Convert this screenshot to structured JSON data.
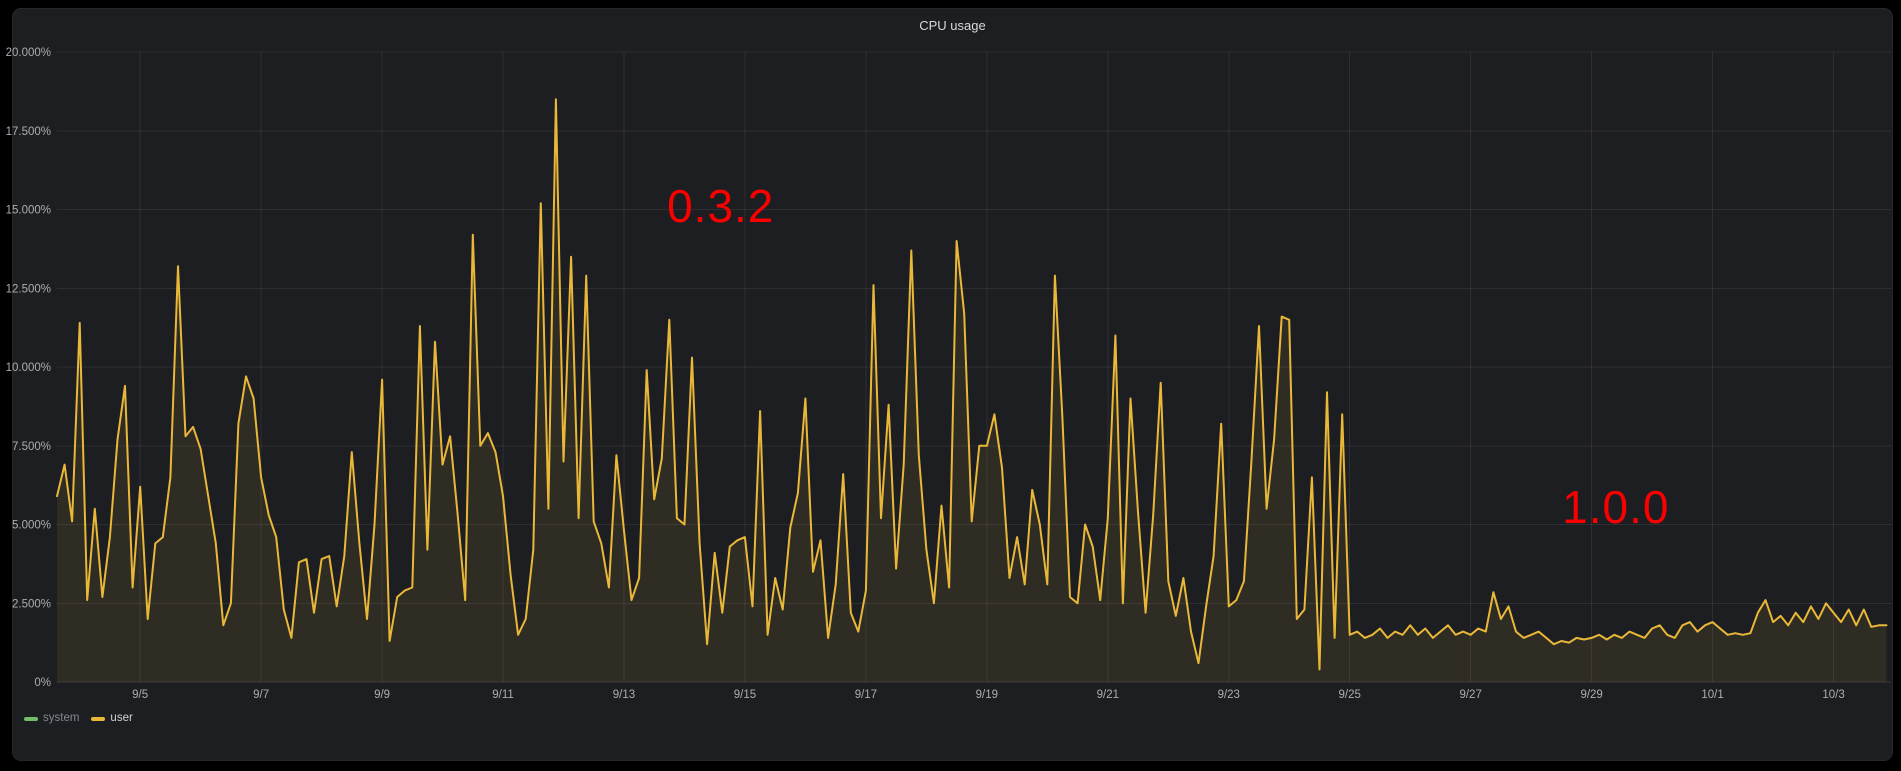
{
  "panel": {
    "title": "CPU usage"
  },
  "colors": {
    "background": "#1d1e21",
    "frame": "#000000",
    "series_user": "#eab839",
    "series_system": "#73bf69",
    "annotation_red": "#fb0000",
    "axis_text": "#abadb1",
    "title_text": "#d8d9da"
  },
  "legend": [
    {
      "label": "system",
      "color": "#73bf69",
      "series_visible": false
    },
    {
      "label": "user",
      "color": "#eab839",
      "series_visible": true
    }
  ],
  "annotations": [
    {
      "text": "0.3.2",
      "color": "#fb0000",
      "t": 10.6,
      "value": 15.1
    },
    {
      "text": "1.0.0",
      "color": "#fb0000",
      "t": 25.4,
      "value": 5.55
    }
  ],
  "chart_data": {
    "type": "line",
    "title": "CPU usage",
    "xlabel": "",
    "ylabel": "",
    "unit": "%",
    "grid": true,
    "legend_position": "bottom-left",
    "xlim": [
      -0.375,
      29.95
    ],
    "ylim": [
      0,
      20
    ],
    "x_axis_note": "t = days since 9/4 00:00",
    "x_ticks": [
      {
        "t": 1,
        "label": "9/5"
      },
      {
        "t": 3,
        "label": "9/7"
      },
      {
        "t": 5,
        "label": "9/9"
      },
      {
        "t": 7,
        "label": "9/11"
      },
      {
        "t": 9,
        "label": "9/13"
      },
      {
        "t": 11,
        "label": "9/15"
      },
      {
        "t": 13,
        "label": "9/17"
      },
      {
        "t": 15,
        "label": "9/19"
      },
      {
        "t": 17,
        "label": "9/21"
      },
      {
        "t": 19,
        "label": "9/23"
      },
      {
        "t": 21,
        "label": "9/25"
      },
      {
        "t": 23,
        "label": "9/27"
      },
      {
        "t": 25,
        "label": "9/29"
      },
      {
        "t": 27,
        "label": "10/1"
      },
      {
        "t": 29,
        "label": "10/3"
      }
    ],
    "y_ticks": [
      {
        "v": 0,
        "label": "0%"
      },
      {
        "v": 2.5,
        "label": "2.500%"
      },
      {
        "v": 5,
        "label": "5.000%"
      },
      {
        "v": 7.5,
        "label": "7.500%"
      },
      {
        "v": 10,
        "label": "10.000%"
      },
      {
        "v": 12.5,
        "label": "12.500%"
      },
      {
        "v": 15,
        "label": "15.000%"
      },
      {
        "v": 17.5,
        "label": "17.500%"
      },
      {
        "v": 20,
        "label": "20.000%"
      }
    ],
    "series": [
      {
        "name": "system",
        "color": "#73bf69",
        "visible": false,
        "t_start": -0.375,
        "t_step": 0.125,
        "values": []
      },
      {
        "name": "user",
        "color": "#eab839",
        "visible": true,
        "fill_opacity": 0.09,
        "t_start": -0.375,
        "t_step": 0.125,
        "values": [
          5.9,
          6.9,
          5.1,
          11.4,
          2.6,
          5.5,
          2.7,
          4.6,
          7.7,
          9.4,
          3.0,
          6.2,
          2.0,
          4.4,
          4.6,
          6.5,
          13.2,
          7.8,
          8.1,
          7.4,
          5.9,
          4.4,
          1.8,
          2.5,
          8.2,
          9.7,
          9.0,
          6.5,
          5.3,
          4.6,
          2.3,
          1.4,
          3.8,
          3.9,
          2.2,
          3.9,
          4.0,
          2.4,
          4.0,
          7.3,
          4.4,
          2.0,
          5.0,
          9.6,
          1.3,
          2.7,
          2.9,
          3.0,
          11.3,
          4.2,
          10.8,
          6.9,
          7.8,
          5.3,
          2.6,
          14.2,
          7.5,
          7.9,
          7.3,
          5.9,
          3.4,
          1.5,
          2.0,
          4.2,
          15.2,
          5.5,
          18.5,
          7.0,
          13.5,
          5.2,
          12.9,
          5.1,
          4.4,
          3.0,
          7.2,
          4.8,
          2.6,
          3.3,
          9.9,
          5.8,
          7.1,
          11.5,
          5.2,
          5.0,
          10.3,
          4.4,
          1.2,
          4.1,
          2.2,
          4.3,
          4.5,
          4.6,
          2.4,
          8.6,
          1.5,
          3.3,
          2.3,
          4.9,
          6.0,
          9.0,
          3.5,
          4.5,
          1.4,
          3.1,
          6.6,
          2.2,
          1.6,
          2.9,
          12.6,
          5.2,
          8.8,
          3.6,
          6.9,
          13.7,
          7.2,
          4.2,
          2.5,
          5.6,
          3.0,
          14.0,
          11.7,
          5.1,
          7.5,
          7.5,
          8.5,
          6.8,
          3.3,
          4.6,
          3.1,
          6.1,
          5.0,
          3.1,
          12.9,
          8.4,
          2.7,
          2.5,
          5.0,
          4.3,
          2.6,
          5.2,
          11.0,
          2.5,
          9.0,
          5.4,
          2.2,
          5.3,
          9.5,
          3.2,
          2.1,
          3.3,
          1.6,
          0.6,
          2.4,
          4.0,
          8.2,
          2.4,
          2.6,
          3.2,
          7.0,
          11.3,
          5.5,
          7.7,
          11.6,
          11.5,
          2.0,
          2.3,
          6.5,
          0.4,
          9.2,
          1.4,
          8.5,
          1.5,
          1.6,
          1.4,
          1.5,
          1.7,
          1.4,
          1.6,
          1.5,
          1.8,
          1.5,
          1.7,
          1.4,
          1.6,
          1.8,
          1.5,
          1.6,
          1.5,
          1.7,
          1.6,
          2.85,
          2.0,
          2.4,
          1.6,
          1.4,
          1.5,
          1.6,
          1.4,
          1.2,
          1.3,
          1.25,
          1.4,
          1.35,
          1.4,
          1.5,
          1.35,
          1.5,
          1.4,
          1.6,
          1.5,
          1.4,
          1.7,
          1.8,
          1.5,
          1.4,
          1.8,
          1.9,
          1.6,
          1.8,
          1.9,
          1.7,
          1.5,
          1.55,
          1.5,
          1.55,
          2.2,
          2.6,
          1.9,
          2.1,
          1.8,
          2.2,
          1.9,
          2.4,
          2.0,
          2.5,
          2.2,
          1.9,
          2.3,
          1.8,
          2.3,
          1.75,
          1.8,
          1.8
        ]
      }
    ]
  }
}
